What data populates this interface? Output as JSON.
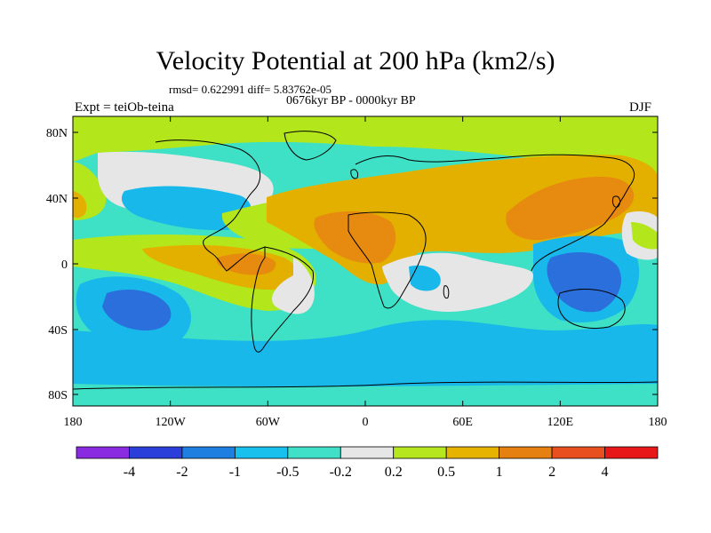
{
  "title": "Velocity Potential at 200 hPa (km2/s)",
  "rmsd_line": "rmsd= 0.622991 diff= 5.83762e-05",
  "period": "0676kyr BP - 0000kyr BP",
  "experiment": "Expt = teiOb-teina",
  "season": "DJF",
  "lat_ticks": [
    "80N",
    "40N",
    "0",
    "40S",
    "80S"
  ],
  "lon_ticks": [
    "180",
    "120W",
    "60W",
    "0",
    "60E",
    "120E",
    "180"
  ],
  "colorbar": {
    "labels": [
      "-4",
      "-2",
      "-1",
      "-0.5",
      "-0.2",
      "0.2",
      "0.5",
      "1",
      "2",
      "4"
    ],
    "colors": [
      "#8a2be2",
      "#2a3fd9",
      "#1e7fe0",
      "#18c0ee",
      "#40e0c8",
      "#e6e6e6",
      "#b6e61e",
      "#e6b400",
      "#e68010",
      "#e85020",
      "#e81818"
    ]
  },
  "palette": {
    "strong_neg": "#2a6fdc",
    "neg": "#18b8ea",
    "weak_neg": "#3ee0c6",
    "neutral": "#e6e6e6",
    "weak_pos": "#b4e61c",
    "pos": "#e4b000",
    "strong_pos": "#e68a10"
  }
}
